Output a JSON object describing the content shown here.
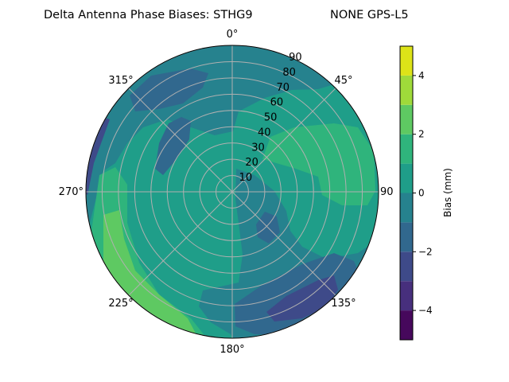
{
  "chart_data": {
    "type": "contour",
    "projection": "polar",
    "title_left": "Delta Antenna Phase Biases: STHG9",
    "title_right": "NONE GPS-L5",
    "theta_direction": "clockwise",
    "theta_zero": "north",
    "theta_ticks": [
      "0°",
      "45°",
      "90",
      "135°",
      "180°",
      "225°",
      "270°",
      "315°"
    ],
    "radial_ticks": [
      "10",
      "20",
      "30",
      "40",
      "50",
      "60",
      "70",
      "80",
      "90"
    ],
    "radial_range": [
      0,
      90
    ],
    "grid": true,
    "colorbar": {
      "label": "Bias (mm)",
      "range": [
        -5,
        5
      ],
      "levels": [
        -5,
        -4,
        -3,
        -2,
        -1,
        0,
        1,
        2,
        3,
        4,
        5
      ],
      "ticks": [
        "−4",
        "−2",
        "0",
        "2",
        "4"
      ],
      "colormap": "viridis",
      "colors": [
        "#46085c",
        "#472f7d",
        "#3e4a89",
        "#31688e",
        "#26828e",
        "#1f9e89",
        "#2fb47c",
        "#5ec962",
        "#9fda3a",
        "#dde318"
      ]
    },
    "dominant_level_range": [
      -1,
      1
    ]
  }
}
